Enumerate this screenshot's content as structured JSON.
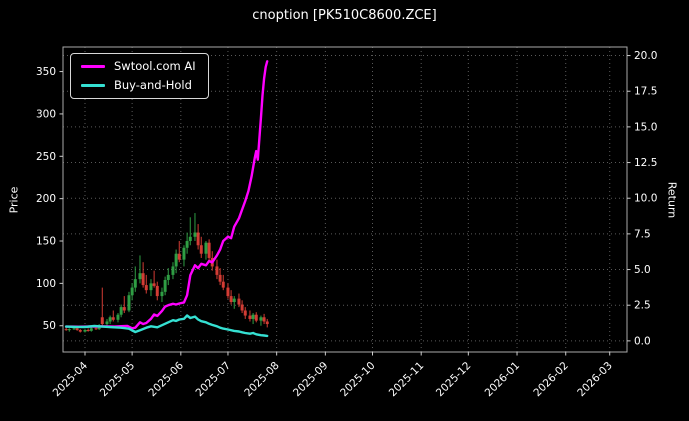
{
  "window": {
    "title": "cnoption [PK510C8600.ZCE]"
  },
  "chart_data": {
    "type": "line",
    "title": "cnoption [PK510C8600.ZCE]",
    "xlabel": "",
    "ylabel_left": "Price",
    "ylabel_right": "Return",
    "grid": true,
    "legend_position": "upper-left",
    "colors": {
      "background": "#000000",
      "text": "#ffffff",
      "grid": "#5a5a5a",
      "spine": "#aaaaaa"
    },
    "x_range": [
      "2025-03-18",
      "2026-03-12"
    ],
    "x_ticks": [
      "2025-04",
      "2025-05",
      "2025-06",
      "2025-07",
      "2025-08",
      "2025-09",
      "2025-10",
      "2025-11",
      "2025-12",
      "2026-01",
      "2026-02",
      "2026-03"
    ],
    "y_left": {
      "range": [
        19,
        379
      ],
      "ticks": [
        50,
        100,
        150,
        200,
        250,
        300,
        350
      ],
      "tick_labels": [
        "50",
        "100",
        "150",
        "200",
        "250",
        "300",
        "350"
      ]
    },
    "y_right": {
      "range": [
        -0.78,
        20.6
      ],
      "ticks": [
        0,
        2.5,
        5,
        7.5,
        10,
        12.5,
        15,
        17.5,
        20
      ],
      "tick_labels": [
        "0.0",
        "2.5",
        "5.0",
        "7.5",
        "10.0",
        "12.5",
        "15.0",
        "17.5",
        "20.0"
      ]
    },
    "series": [
      {
        "name": "Swtool.com AI",
        "color": "#ff00ff",
        "axis": "right",
        "points": [
          [
            "2025-03-20",
            1.0
          ],
          [
            "2025-03-24",
            1.0
          ],
          [
            "2025-03-28",
            0.99
          ],
          [
            "2025-04-01",
            1.0
          ],
          [
            "2025-04-05",
            1.01
          ],
          [
            "2025-04-09",
            1.0
          ],
          [
            "2025-04-12",
            1.02
          ],
          [
            "2025-04-16",
            1.01
          ],
          [
            "2025-04-20",
            1.0
          ],
          [
            "2025-04-24",
            1.03
          ],
          [
            "2025-04-28",
            1.05
          ],
          [
            "2025-05-01",
            0.88
          ],
          [
            "2025-05-03",
            0.92
          ],
          [
            "2025-05-06",
            1.3
          ],
          [
            "2025-05-08",
            1.18
          ],
          [
            "2025-05-10",
            1.25
          ],
          [
            "2025-05-13",
            1.55
          ],
          [
            "2025-05-15",
            1.85
          ],
          [
            "2025-05-17",
            1.75
          ],
          [
            "2025-05-20",
            2.1
          ],
          [
            "2025-05-22",
            2.4
          ],
          [
            "2025-05-24",
            2.5
          ],
          [
            "2025-05-27",
            2.6
          ],
          [
            "2025-05-29",
            2.55
          ],
          [
            "2025-05-31",
            2.62
          ],
          [
            "2025-06-03",
            2.7
          ],
          [
            "2025-06-05",
            3.2
          ],
          [
            "2025-06-07",
            4.6
          ],
          [
            "2025-06-10",
            5.3
          ],
          [
            "2025-06-12",
            5.1
          ],
          [
            "2025-06-14",
            5.4
          ],
          [
            "2025-06-17",
            5.3
          ],
          [
            "2025-06-19",
            5.6
          ],
          [
            "2025-06-21",
            5.5
          ],
          [
            "2025-06-24",
            6.0
          ],
          [
            "2025-06-26",
            6.4
          ],
          [
            "2025-06-28",
            7.0
          ],
          [
            "2025-07-01",
            7.3
          ],
          [
            "2025-07-03",
            7.2
          ],
          [
            "2025-07-05",
            8.0
          ],
          [
            "2025-07-08",
            8.6
          ],
          [
            "2025-07-10",
            9.2
          ],
          [
            "2025-07-12",
            9.8
          ],
          [
            "2025-07-14",
            10.5
          ],
          [
            "2025-07-16",
            11.5
          ],
          [
            "2025-07-18",
            12.8
          ],
          [
            "2025-07-19",
            13.3
          ],
          [
            "2025-07-20",
            12.7
          ],
          [
            "2025-07-21",
            14.2
          ],
          [
            "2025-07-22",
            15.6
          ],
          [
            "2025-07-23",
            17.2
          ],
          [
            "2025-07-24",
            18.4
          ],
          [
            "2025-07-25",
            19.2
          ],
          [
            "2025-07-26",
            19.6
          ]
        ]
      },
      {
        "name": "Buy-and-Hold",
        "color": "#35e0d2",
        "axis": "right",
        "points": [
          [
            "2025-03-20",
            1.0
          ],
          [
            "2025-03-26",
            0.98
          ],
          [
            "2025-04-01",
            0.97
          ],
          [
            "2025-04-07",
            1.04
          ],
          [
            "2025-04-12",
            1.0
          ],
          [
            "2025-04-18",
            0.96
          ],
          [
            "2025-04-24",
            0.92
          ],
          [
            "2025-04-29",
            0.85
          ],
          [
            "2025-05-03",
            0.62
          ],
          [
            "2025-05-06",
            0.75
          ],
          [
            "2025-05-10",
            0.92
          ],
          [
            "2025-05-13",
            1.02
          ],
          [
            "2025-05-17",
            0.95
          ],
          [
            "2025-05-20",
            1.1
          ],
          [
            "2025-05-24",
            1.3
          ],
          [
            "2025-05-27",
            1.45
          ],
          [
            "2025-05-29",
            1.4
          ],
          [
            "2025-05-31",
            1.5
          ],
          [
            "2025-06-03",
            1.55
          ],
          [
            "2025-06-05",
            1.78
          ],
          [
            "2025-06-07",
            1.6
          ],
          [
            "2025-06-10",
            1.7
          ],
          [
            "2025-06-12",
            1.5
          ],
          [
            "2025-06-14",
            1.38
          ],
          [
            "2025-06-17",
            1.3
          ],
          [
            "2025-06-19",
            1.2
          ],
          [
            "2025-06-21",
            1.12
          ],
          [
            "2025-06-24",
            1.02
          ],
          [
            "2025-06-26",
            0.92
          ],
          [
            "2025-06-28",
            0.86
          ],
          [
            "2025-07-01",
            0.8
          ],
          [
            "2025-07-05",
            0.7
          ],
          [
            "2025-07-08",
            0.66
          ],
          [
            "2025-07-10",
            0.6
          ],
          [
            "2025-07-12",
            0.55
          ],
          [
            "2025-07-15",
            0.5
          ],
          [
            "2025-07-17",
            0.55
          ],
          [
            "2025-07-19",
            0.46
          ],
          [
            "2025-07-22",
            0.4
          ],
          [
            "2025-07-24",
            0.38
          ],
          [
            "2025-07-26",
            0.35
          ]
        ]
      }
    ],
    "candles": {
      "axis": "left",
      "up_color": "#2f9e44",
      "down_color": "#d33c34",
      "ohlc": [
        [
          "2025-03-20",
          46,
          48,
          44,
          45
        ],
        [
          "2025-03-22",
          45,
          47,
          43,
          46
        ],
        [
          "2025-03-25",
          46,
          49,
          45,
          47
        ],
        [
          "2025-03-27",
          47,
          48,
          44,
          45
        ],
        [
          "2025-03-29",
          45,
          46,
          42,
          43
        ],
        [
          "2025-04-01",
          43,
          46,
          42,
          45
        ],
        [
          "2025-04-03",
          45,
          47,
          43,
          44
        ],
        [
          "2025-04-05",
          44,
          48,
          43,
          47
        ],
        [
          "2025-04-08",
          47,
          50,
          45,
          46
        ],
        [
          "2025-04-10",
          46,
          52,
          45,
          50
        ],
        [
          "2025-04-12",
          60,
          95,
          50,
          52
        ],
        [
          "2025-04-15",
          52,
          58,
          48,
          55
        ],
        [
          "2025-04-17",
          55,
          62,
          52,
          60
        ],
        [
          "2025-04-19",
          60,
          68,
          55,
          57
        ],
        [
          "2025-04-22",
          57,
          65,
          54,
          63
        ],
        [
          "2025-04-24",
          63,
          75,
          60,
          72
        ],
        [
          "2025-04-26",
          72,
          85,
          65,
          68
        ],
        [
          "2025-04-29",
          68,
          90,
          66,
          86
        ],
        [
          "2025-05-01",
          86,
          100,
          80,
          95
        ],
        [
          "2025-05-03",
          95,
          120,
          90,
          105
        ],
        [
          "2025-05-06",
          105,
          133,
          100,
          112
        ],
        [
          "2025-05-08",
          112,
          125,
          95,
          98
        ],
        [
          "2025-05-10",
          98,
          110,
          88,
          92
        ],
        [
          "2025-05-13",
          92,
          105,
          85,
          100
        ],
        [
          "2025-05-15",
          100,
          115,
          95,
          97
        ],
        [
          "2025-05-17",
          97,
          102,
          80,
          85
        ],
        [
          "2025-05-20",
          85,
          95,
          78,
          90
        ],
        [
          "2025-05-22",
          90,
          108,
          86,
          104
        ],
        [
          "2025-05-24",
          104,
          118,
          98,
          110
        ],
        [
          "2025-05-27",
          110,
          125,
          105,
          120
        ],
        [
          "2025-05-29",
          120,
          140,
          112,
          135
        ],
        [
          "2025-05-31",
          135,
          150,
          125,
          128
        ],
        [
          "2025-06-03",
          128,
          145,
          120,
          142
        ],
        [
          "2025-06-05",
          142,
          160,
          135,
          150
        ],
        [
          "2025-06-07",
          150,
          178,
          145,
          155
        ],
        [
          "2025-06-10",
          155,
          183,
          150,
          160
        ],
        [
          "2025-06-12",
          160,
          170,
          140,
          145
        ],
        [
          "2025-06-14",
          145,
          155,
          130,
          135
        ],
        [
          "2025-06-17",
          135,
          150,
          128,
          148
        ],
        [
          "2025-06-19",
          148,
          152,
          125,
          130
        ],
        [
          "2025-06-21",
          130,
          138,
          115,
          120
        ],
        [
          "2025-06-24",
          120,
          128,
          105,
          110
        ],
        [
          "2025-06-26",
          110,
          118,
          98,
          102
        ],
        [
          "2025-06-28",
          102,
          110,
          92,
          95
        ],
        [
          "2025-07-01",
          95,
          100,
          82,
          85
        ],
        [
          "2025-07-03",
          85,
          92,
          75,
          78
        ],
        [
          "2025-07-05",
          78,
          85,
          70,
          82
        ],
        [
          "2025-07-08",
          82,
          88,
          72,
          75
        ],
        [
          "2025-07-10",
          75,
          80,
          65,
          68
        ],
        [
          "2025-07-12",
          68,
          72,
          58,
          62
        ],
        [
          "2025-07-15",
          62,
          68,
          55,
          58
        ],
        [
          "2025-07-17",
          58,
          65,
          52,
          63
        ],
        [
          "2025-07-19",
          63,
          66,
          54,
          56
        ],
        [
          "2025-07-22",
          56,
          62,
          50,
          60
        ],
        [
          "2025-07-24",
          60,
          64,
          52,
          55
        ],
        [
          "2025-07-26",
          55,
          58,
          48,
          52
        ]
      ]
    }
  }
}
